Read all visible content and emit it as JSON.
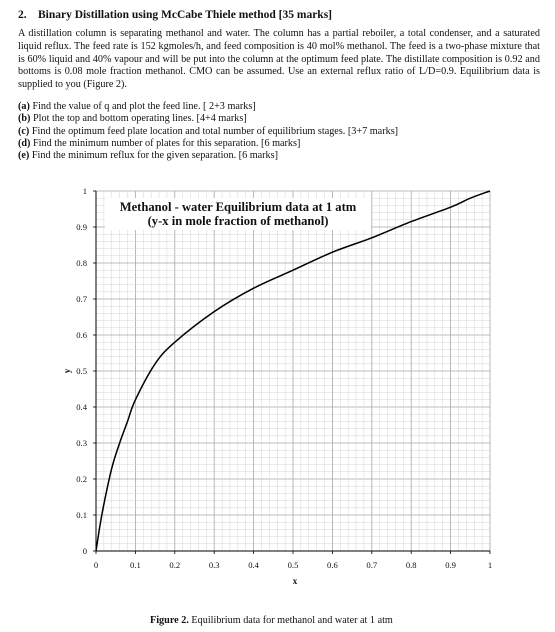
{
  "question": {
    "number": "2.",
    "title": "Binary Distillation using McCabe Thiele method [35 marks]",
    "body": "A distillation column is separating methanol and water. The column has a partial reboiler, a total condenser, and a saturated liquid reflux. The feed rate is 152 kgmoles/h, and feed composition is 40 mol% methanol. The feed is a two-phase mixture that is 60% liquid and 40% vapour and will be put into the column at the optimum feed plate. The distillate composition is 0.92 and bottoms is 0.08 mole fraction methanol. CMO can be assumed. Use an external reflux ratio of L/D=0.9. Equilibrium data is supplied to you (Figure 2).",
    "parts": [
      {
        "label": "(a)",
        "text": " Find the value of q and plot the feed line. [ 2+3 marks]"
      },
      {
        "label": "(b)",
        "text": " Plot the top and bottom operating lines. [4+4 marks]"
      },
      {
        "label": "(c)",
        "text": " Find the optimum feed plate location and total number of equilibrium stages. [3+7 marks]"
      },
      {
        "label": "(d)",
        "text": " Find the minimum number of plates for this separation. [6 marks]"
      },
      {
        "label": "(e)",
        "text": " Find the minimum reflux for the given separation. [6 marks]"
      }
    ]
  },
  "figure": {
    "caption_label": "Figure 2.",
    "caption_text": " Equilibrium data for methanol and water at 1 atm"
  },
  "chart_data": {
    "type": "line",
    "title": "Methanol - water Equilibrium data at 1 atm",
    "subtitle": "(y-x in mole fraction of methanol)",
    "xlabel": "x",
    "ylabel": "y",
    "xlim": [
      0,
      1
    ],
    "ylim": [
      0,
      1
    ],
    "grid": true,
    "x_ticks": [
      "0",
      "0.1",
      "0.2",
      "0.3",
      "0.4",
      "0.5",
      "0.6",
      "0.7",
      "0.8",
      "0.9",
      "1"
    ],
    "y_ticks": [
      "0",
      "0.1",
      "0.2",
      "0.3",
      "0.4",
      "0.5",
      "0.6",
      "0.7",
      "0.8",
      "0.9",
      "1"
    ],
    "series": [
      {
        "x": [
          0,
          0.01,
          0.02,
          0.04,
          0.06,
          0.08,
          0.1,
          0.15,
          0.2,
          0.3,
          0.4,
          0.5,
          0.6,
          0.7,
          0.8,
          0.9,
          0.95,
          1.0
        ],
        "y": [
          0,
          0.07,
          0.13,
          0.23,
          0.3,
          0.36,
          0.42,
          0.52,
          0.58,
          0.665,
          0.73,
          0.78,
          0.83,
          0.87,
          0.915,
          0.955,
          0.98,
          1.0
        ],
        "color": "#000000"
      }
    ]
  }
}
